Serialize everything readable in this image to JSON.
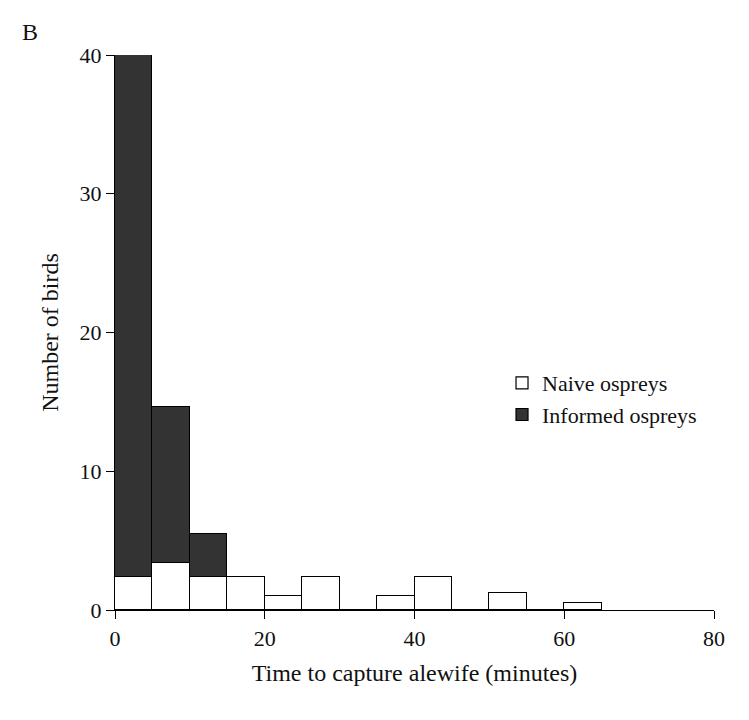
{
  "chart_data": {
    "type": "histogram",
    "panel": "B",
    "x_label": "Time to capture alewife (minutes)",
    "y_label": "Number of birds",
    "bins": [
      0,
      5,
      10,
      15,
      20,
      25,
      30,
      35,
      40,
      45,
      50,
      55,
      60,
      65
    ],
    "series": [
      {
        "name": "Naive ospreys",
        "color": "#ffffff",
        "values": [
          2.4,
          3.4,
          2.4,
          2.4,
          1,
          2.4,
          0,
          1,
          2.4,
          0,
          1.2,
          0,
          0.5
        ]
      },
      {
        "name": "Informed ospreys",
        "color": "#333333",
        "values": [
          37.6,
          11.2,
          3.1,
          0,
          0,
          0,
          0,
          0,
          0,
          0,
          0,
          0,
          0
        ]
      }
    ],
    "xlim": [
      0,
      80
    ],
    "xticks": [
      0,
      20,
      40,
      60,
      80
    ],
    "ylim": [
      0,
      40
    ],
    "yticks": [
      0,
      10,
      20,
      30,
      40
    ],
    "stacked": true,
    "grid": false,
    "legend": "right"
  }
}
